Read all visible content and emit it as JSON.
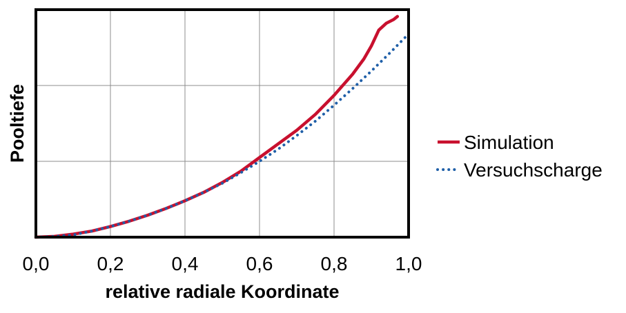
{
  "chart_data": {
    "type": "line",
    "title": "",
    "xlabel": "relative radiale Koordinate",
    "ylabel": "Pooltiefe",
    "xlim": [
      0,
      1.0
    ],
    "ylim": [
      0,
      3
    ],
    "x_ticks": [
      0,
      0.2,
      0.4,
      0.6,
      0.8,
      1.0
    ],
    "x_tick_labels": [
      "0,0",
      "0,2",
      "0,4",
      "0,6",
      "0,8",
      "1,0"
    ],
    "y_ticks": [
      0,
      1,
      2,
      3
    ],
    "y_tick_labels_visible": false,
    "grid": true,
    "legend_position": "right",
    "series": [
      {
        "name": "Simulation",
        "color": "#c8102e",
        "style": "solid",
        "x": [
          0.0,
          0.05,
          0.1,
          0.15,
          0.2,
          0.25,
          0.3,
          0.35,
          0.4,
          0.45,
          0.5,
          0.55,
          0.6,
          0.65,
          0.7,
          0.75,
          0.8,
          0.85,
          0.88,
          0.9,
          0.92,
          0.94,
          0.96,
          0.97
        ],
        "values": [
          0.0,
          0.01,
          0.04,
          0.08,
          0.14,
          0.21,
          0.29,
          0.38,
          0.48,
          0.59,
          0.72,
          0.87,
          1.05,
          1.23,
          1.41,
          1.62,
          1.87,
          2.15,
          2.35,
          2.52,
          2.73,
          2.82,
          2.87,
          2.91
        ]
      },
      {
        "name": "Versuchscharge",
        "color": "#1f5fa8",
        "style": "dotted",
        "x": [
          0.0,
          0.05,
          0.1,
          0.15,
          0.2,
          0.25,
          0.3,
          0.35,
          0.4,
          0.45,
          0.5,
          0.55,
          0.6,
          0.65,
          0.7,
          0.75,
          0.8,
          0.85,
          0.9,
          0.95,
          1.0
        ],
        "values": [
          0.0,
          0.01,
          0.03,
          0.08,
          0.14,
          0.21,
          0.29,
          0.38,
          0.48,
          0.59,
          0.71,
          0.85,
          1.0,
          1.16,
          1.34,
          1.53,
          1.74,
          1.96,
          2.19,
          2.43,
          2.68
        ]
      }
    ]
  }
}
